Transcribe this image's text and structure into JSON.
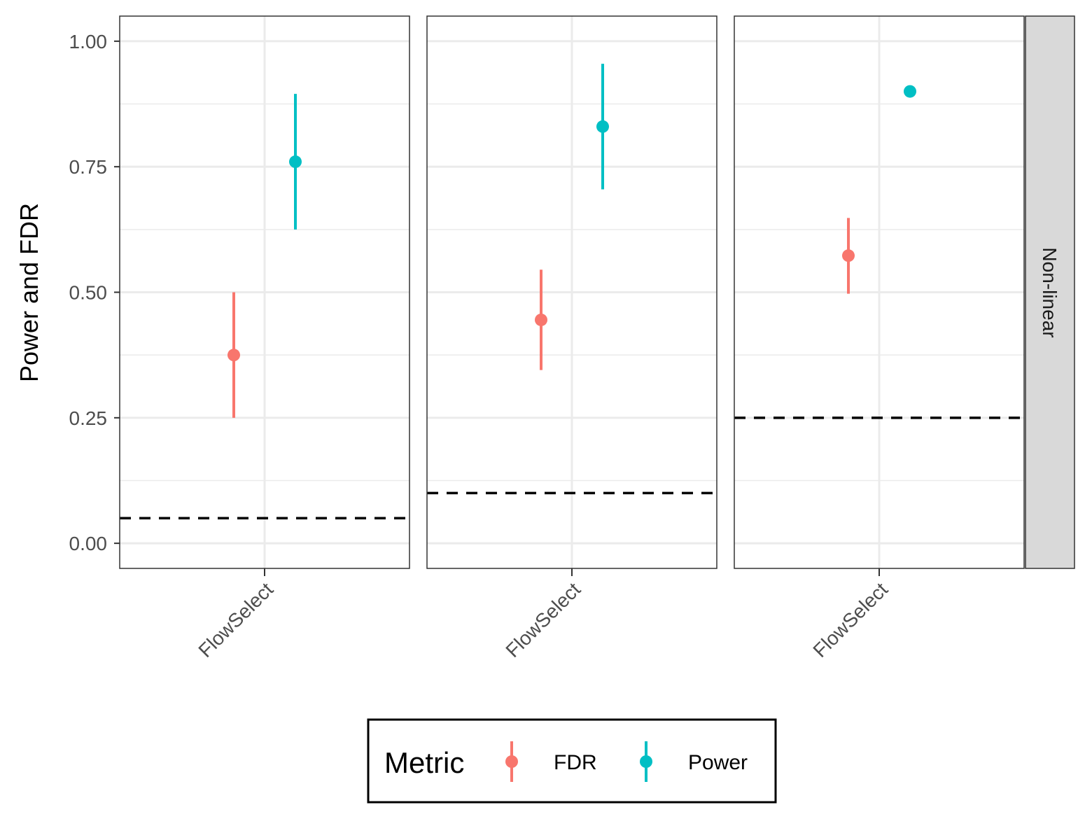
{
  "chart_data": {
    "type": "scatter",
    "ylabel": "Power and FDR",
    "ylim": [
      -0.05,
      1.05
    ],
    "yticks": [
      "0.00",
      "0.25",
      "0.50",
      "0.75",
      "1.00"
    ],
    "ytick_values": [
      0,
      0.25,
      0.5,
      0.75,
      1.0
    ],
    "grid": true,
    "strip_label": "Non-linear",
    "legend": {
      "title": "Metric",
      "placement": "bottom",
      "entries": [
        {
          "label": "FDR",
          "color": "#F8766D"
        },
        {
          "label": "Power",
          "color": "#00BFC4"
        }
      ]
    },
    "panels": [
      {
        "category": "FlowSelect",
        "threshold": 0.05,
        "points": [
          {
            "metric": "FDR",
            "value": 0.375,
            "low": 0.25,
            "high": 0.5
          },
          {
            "metric": "Power",
            "value": 0.76,
            "low": 0.625,
            "high": 0.895
          }
        ]
      },
      {
        "category": "FlowSelect",
        "threshold": 0.1,
        "points": [
          {
            "metric": "FDR",
            "value": 0.445,
            "low": 0.345,
            "high": 0.545
          },
          {
            "metric": "Power",
            "value": 0.83,
            "low": 0.705,
            "high": 0.955
          }
        ]
      },
      {
        "category": "FlowSelect",
        "threshold": 0.25,
        "points": [
          {
            "metric": "FDR",
            "value": 0.573,
            "low": 0.497,
            "high": 0.648
          },
          {
            "metric": "Power",
            "value": 0.9,
            "low": 0.9,
            "high": 0.9
          }
        ]
      }
    ]
  }
}
